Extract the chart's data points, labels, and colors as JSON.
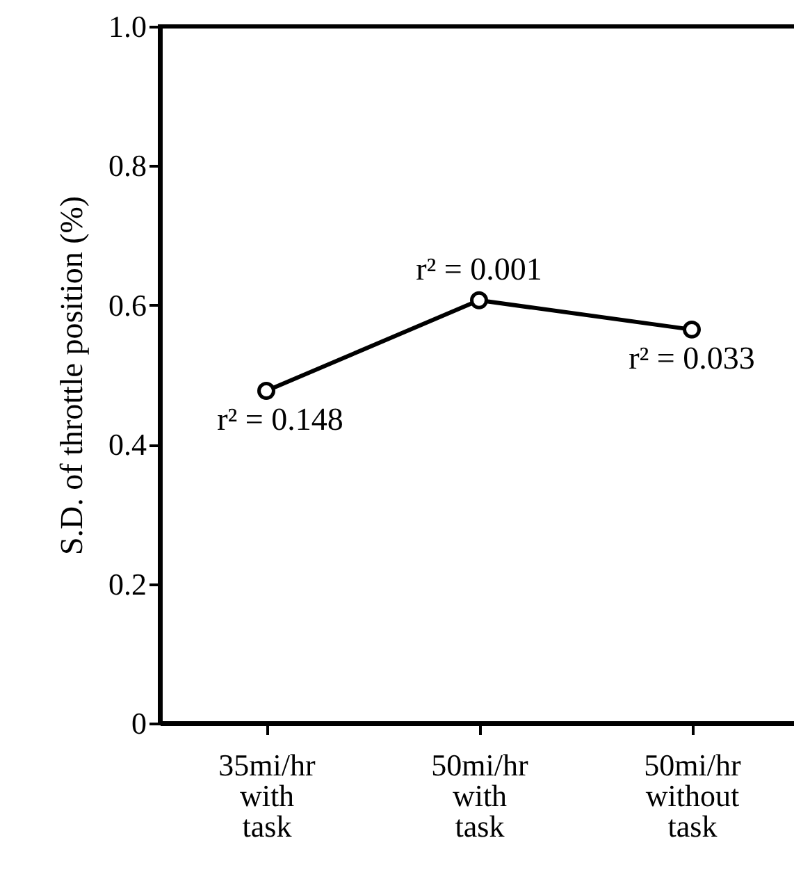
{
  "chart_data": {
    "type": "line",
    "ylabel": "S.D. of throttle position (%)",
    "categories": [
      "35mi/hr\nwith\ntask",
      "50mi/hr\nwith\ntask",
      "50mi/hr\nwithout\ntask"
    ],
    "series": [
      {
        "color": "#000000",
        "values": [
          0.477,
          0.607,
          0.565
        ]
      }
    ],
    "ylim": [
      0,
      1.0
    ],
    "yticks": [
      {
        "value": 0,
        "label": "0"
      },
      0.2,
      0.4,
      0.6,
      0.8,
      {
        "value": 1.0,
        "label": "1.0"
      }
    ],
    "marker": "circle",
    "line_style": "solid",
    "grid": false,
    "annotations": [
      {
        "text": "r² = 0.148",
        "x": "35mi/hr\nwith\ntask",
        "y": 0.477
      },
      {
        "text": "r² = 0.001",
        "x": "50mi/hr\nwith\ntask",
        "y": 0.607
      },
      {
        "text": "r² = 0.033",
        "x": "50mi/hr\nwithout\ntask",
        "y": 0.565
      }
    ]
  }
}
